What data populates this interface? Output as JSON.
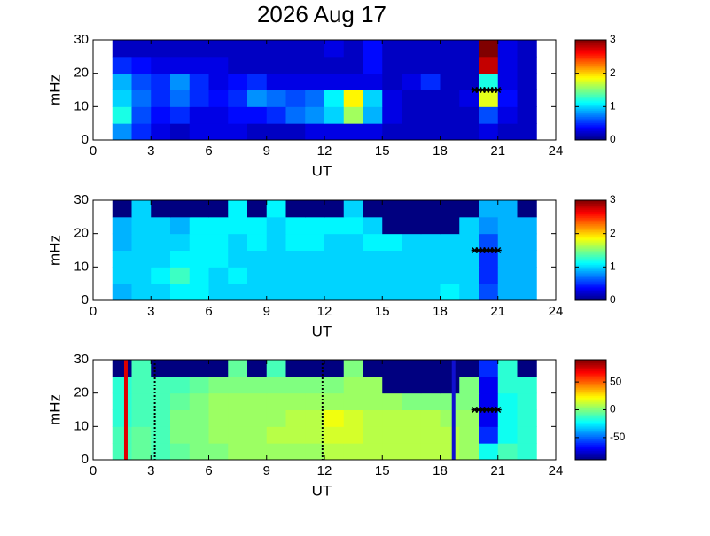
{
  "chart_data": [
    {
      "type": "heatmap",
      "title": "2026 Aug 17",
      "xlabel": "UT",
      "ylabel": "mHz",
      "xlim": [
        0,
        24
      ],
      "ylim": [
        0,
        30
      ],
      "xticks": [
        0,
        3,
        6,
        9,
        12,
        15,
        18,
        21,
        24
      ],
      "yticks": [
        0,
        10,
        20,
        30
      ],
      "clim": [
        0,
        3
      ],
      "cticks": [
        0,
        1,
        2,
        3
      ],
      "xbins": [
        1,
        2,
        3,
        4,
        5,
        6,
        7,
        8,
        9,
        10,
        11,
        12,
        13,
        14,
        15,
        16,
        17,
        18,
        19,
        20,
        21,
        22,
        23
      ],
      "ybins": [
        0,
        5,
        10,
        15,
        20,
        25,
        30
      ],
      "z": [
        [
          0.8,
          0.5,
          0.3,
          0.2,
          0.3,
          0.3,
          0.3,
          0.2,
          0.2,
          0.2,
          0.3,
          0.3,
          0.3,
          0.3,
          0.2,
          0.2,
          0.2,
          0.2,
          0.2,
          0.3,
          0.2,
          0.2
        ],
        [
          1.2,
          0.6,
          0.4,
          0.5,
          0.3,
          0.3,
          0.4,
          0.4,
          0.5,
          0.7,
          0.8,
          1.0,
          1.6,
          0.9,
          0.3,
          0.2,
          0.2,
          0.2,
          0.2,
          0.6,
          0.3,
          0.2
        ],
        [
          1.0,
          0.7,
          0.5,
          0.7,
          0.5,
          0.4,
          0.5,
          0.8,
          0.7,
          0.6,
          0.7,
          1.1,
          1.9,
          1.0,
          0.3,
          0.2,
          0.2,
          0.2,
          0.3,
          1.8,
          0.4,
          0.2
        ],
        [
          0.9,
          0.6,
          0.5,
          0.8,
          0.5,
          0.3,
          0.4,
          0.5,
          0.3,
          0.3,
          0.3,
          0.3,
          0.3,
          0.3,
          0.2,
          0.3,
          0.5,
          0.2,
          0.2,
          1.2,
          0.3,
          0.2
        ],
        [
          0.5,
          0.4,
          0.3,
          0.3,
          0.3,
          0.3,
          0.2,
          0.2,
          0.2,
          0.2,
          0.2,
          0.2,
          0.2,
          0.4,
          0.2,
          0.2,
          0.2,
          0.2,
          0.2,
          2.8,
          0.3,
          0.2
        ],
        [
          0.2,
          0.2,
          0.2,
          0.2,
          0.2,
          0.2,
          0.2,
          0.2,
          0.2,
          0.2,
          0.2,
          0.3,
          0.2,
          0.4,
          0.2,
          0.2,
          0.2,
          0.2,
          0.2,
          3.0,
          0.3,
          0.2
        ]
      ],
      "markers": {
        "color": "#000000",
        "x": [
          19.8,
          20.0,
          20.2,
          20.4,
          20.6,
          20.8,
          21.0
        ],
        "y": [
          15,
          15,
          15,
          15,
          15,
          15,
          15
        ]
      }
    },
    {
      "type": "heatmap",
      "xlabel": "UT",
      "ylabel": "mHz",
      "xlim": [
        0,
        24
      ],
      "ylim": [
        0,
        30
      ],
      "xticks": [
        0,
        3,
        6,
        9,
        12,
        15,
        18,
        21,
        24
      ],
      "yticks": [
        0,
        10,
        20,
        30
      ],
      "clim": [
        0,
        3
      ],
      "cticks": [
        0,
        1,
        2,
        3
      ],
      "xbins": [
        1,
        2,
        3,
        4,
        5,
        6,
        7,
        8,
        9,
        10,
        11,
        12,
        13,
        14,
        15,
        16,
        17,
        18,
        19,
        20,
        21,
        22,
        23
      ],
      "ybins": [
        0,
        5,
        10,
        15,
        20,
        25,
        30
      ],
      "z": [
        [
          0.9,
          1.0,
          1.0,
          1.1,
          1.1,
          1.0,
          1.0,
          1.0,
          1.0,
          1.0,
          1.0,
          1.0,
          1.0,
          1.0,
          1.0,
          1.0,
          1.0,
          1.1,
          1.0,
          0.6,
          0.9,
          0.9
        ],
        [
          1.0,
          1.0,
          1.1,
          1.3,
          1.1,
          1.0,
          1.1,
          1.0,
          1.0,
          1.0,
          1.0,
          1.0,
          1.0,
          1.0,
          1.0,
          1.0,
          1.0,
          1.0,
          1.0,
          0.5,
          0.9,
          0.9
        ],
        [
          1.0,
          1.0,
          1.0,
          1.1,
          1.1,
          1.1,
          1.0,
          1.0,
          1.0,
          1.0,
          1.0,
          1.0,
          1.0,
          1.0,
          1.0,
          1.0,
          1.0,
          1.0,
          1.0,
          0.5,
          0.9,
          0.9
        ],
        [
          0.9,
          1.0,
          1.0,
          1.0,
          1.1,
          1.1,
          1.0,
          1.1,
          1.0,
          1.1,
          1.1,
          1.0,
          1.0,
          1.1,
          1.1,
          1.0,
          1.0,
          1.0,
          1.0,
          0.6,
          0.9,
          0.9
        ],
        [
          0.9,
          1.0,
          1.0,
          0.9,
          1.1,
          1.1,
          1.1,
          1.1,
          1.0,
          1.1,
          1.1,
          1.1,
          1.1,
          1.0,
          0.0,
          0.0,
          0.0,
          0.0,
          1.0,
          0.8,
          0.9,
          0.9
        ],
        [
          0.0,
          1.0,
          0.0,
          0.0,
          0.0,
          0.0,
          1.1,
          0.0,
          1.1,
          0.0,
          0.0,
          0.0,
          1.0,
          0.0,
          0.0,
          0.0,
          0.0,
          0.0,
          0.0,
          0.9,
          0.9,
          0.0
        ]
      ],
      "markers": {
        "color": "#000000",
        "x": [
          19.8,
          20.0,
          20.2,
          20.4,
          20.6,
          20.8,
          21.0
        ],
        "y": [
          15,
          15,
          15,
          15,
          15,
          15,
          15
        ]
      }
    },
    {
      "type": "heatmap",
      "xlabel": "UT",
      "ylabel": "mHz",
      "xlim": [
        0,
        24
      ],
      "ylim": [
        0,
        30
      ],
      "xticks": [
        0,
        3,
        6,
        9,
        12,
        15,
        18,
        21,
        24
      ],
      "yticks": [
        0,
        10,
        20,
        30
      ],
      "clim": [
        -90,
        90
      ],
      "cticks": [
        -50,
        0,
        50
      ],
      "xbins": [
        1,
        2,
        3,
        4,
        5,
        6,
        7,
        8,
        9,
        10,
        11,
        12,
        13,
        14,
        15,
        16,
        17,
        18,
        19,
        20,
        21,
        22,
        23
      ],
      "ybins": [
        0,
        5,
        10,
        15,
        20,
        25,
        30
      ],
      "z": [
        [
          -10,
          -5,
          -10,
          -5,
          0,
          0,
          5,
          5,
          5,
          5,
          5,
          10,
          10,
          10,
          10,
          10,
          10,
          10,
          5,
          -20,
          -10,
          -15
        ],
        [
          -10,
          -5,
          -10,
          0,
          0,
          5,
          5,
          5,
          10,
          10,
          10,
          15,
          15,
          10,
          10,
          10,
          10,
          10,
          5,
          -60,
          -20,
          -15
        ],
        [
          -15,
          -10,
          -10,
          0,
          0,
          5,
          5,
          5,
          5,
          10,
          10,
          20,
          15,
          10,
          10,
          10,
          10,
          5,
          5,
          -70,
          -20,
          -15
        ],
        [
          -15,
          -10,
          -10,
          -5,
          0,
          5,
          5,
          5,
          5,
          5,
          5,
          5,
          5,
          5,
          5,
          0,
          0,
          0,
          0,
          -70,
          -20,
          -15
        ],
        [
          -15,
          -10,
          -10,
          -10,
          -5,
          0,
          0,
          0,
          0,
          0,
          0,
          0,
          5,
          5,
          -90,
          -90,
          -90,
          -90,
          0,
          -70,
          -15,
          -15
        ],
        [
          -90,
          -10,
          -90,
          -90,
          -90,
          -90,
          -5,
          -90,
          -10,
          -90,
          -90,
          -90,
          0,
          -90,
          -90,
          -90,
          -90,
          -90,
          -90,
          -60,
          -15,
          -90
        ]
      ],
      "markers": {
        "color": "#000000",
        "x": [
          19.8,
          20.0,
          20.2,
          20.4,
          20.6,
          20.8,
          21.0
        ],
        "y": [
          15,
          15,
          15,
          15,
          15,
          15,
          15
        ]
      },
      "vlines": [
        {
          "x": 1.7,
          "color": "#e00000",
          "style": "solid"
        },
        {
          "x": 3.2,
          "color": "#000000",
          "style": "dotted"
        },
        {
          "x": 11.9,
          "color": "#000000",
          "style": "dotted"
        },
        {
          "x": 18.7,
          "color": "#1010d0",
          "style": "solid"
        }
      ]
    }
  ]
}
